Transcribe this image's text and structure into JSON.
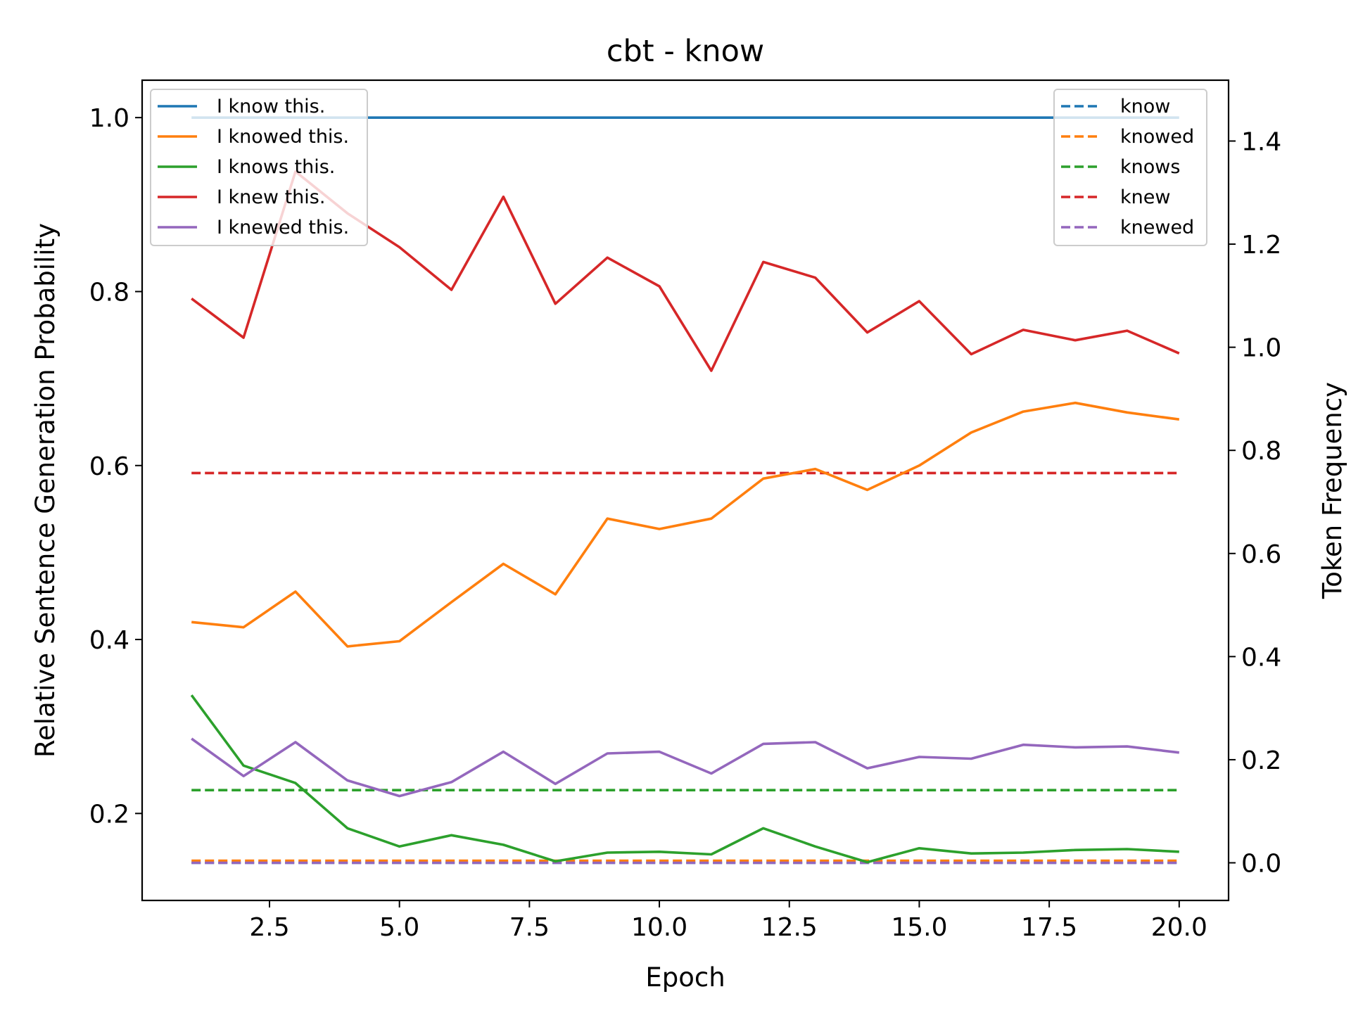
{
  "chart_data": {
    "type": "line",
    "title": "cbt - know",
    "xlabel": "Epoch",
    "ylabel": "Relative Sentence Generation Probability",
    "ylabel_right": "Token Frequency",
    "xlim": [
      0.05,
      20.95
    ],
    "ylim": [
      0.1,
      1.043
    ],
    "ylim_right": [
      -0.073,
      1.518
    ],
    "x_ticks": [
      2.5,
      5.0,
      7.5,
      10.0,
      12.5,
      15.0,
      17.5,
      20.0
    ],
    "x_tick_labels": [
      "2.5",
      "5.0",
      "7.5",
      "10.0",
      "12.5",
      "15.0",
      "17.5",
      "20.0"
    ],
    "y_ticks": [
      0.2,
      0.4,
      0.6,
      0.8,
      1.0
    ],
    "y_tick_labels": [
      "0.2",
      "0.4",
      "0.6",
      "0.8",
      "1.0"
    ],
    "y_right_ticks": [
      0.0,
      0.2,
      0.4,
      0.6,
      0.8,
      1.0,
      1.2,
      1.4
    ],
    "y_right_tick_labels": [
      "0.0",
      "0.2",
      "0.4",
      "0.6",
      "0.8",
      "1.0",
      "1.2",
      "1.4"
    ],
    "x": [
      1,
      2,
      3,
      4,
      5,
      6,
      7,
      8,
      9,
      10,
      11,
      12,
      13,
      14,
      15,
      16,
      17,
      18,
      19,
      20
    ],
    "series": [
      {
        "name": "I know this.",
        "color": "#1f77b4",
        "axis": "left",
        "style": "solid",
        "values": [
          1.0,
          1.0,
          1.0,
          1.0,
          1.0,
          1.0,
          1.0,
          1.0,
          1.0,
          1.0,
          1.0,
          1.0,
          1.0,
          1.0,
          1.0,
          1.0,
          1.0,
          1.0,
          1.0,
          1.0
        ]
      },
      {
        "name": "I knowed this.",
        "color": "#ff7f0e",
        "axis": "left",
        "style": "solid",
        "values": [
          0.42,
          0.414,
          0.455,
          0.392,
          0.398,
          0.443,
          0.487,
          0.452,
          0.539,
          0.527,
          0.539,
          0.585,
          0.596,
          0.572,
          0.6,
          0.638,
          0.662,
          0.672,
          0.661,
          0.653
        ]
      },
      {
        "name": "I knows this.",
        "color": "#2ca02c",
        "axis": "left",
        "style": "solid",
        "values": [
          0.336,
          0.255,
          0.235,
          0.183,
          0.162,
          0.175,
          0.164,
          0.145,
          0.155,
          0.156,
          0.153,
          0.183,
          0.162,
          0.144,
          0.16,
          0.154,
          0.155,
          0.158,
          0.159,
          0.156
        ]
      },
      {
        "name": "I knew this.",
        "color": "#d62728",
        "axis": "left",
        "style": "solid",
        "values": [
          0.792,
          0.747,
          0.938,
          0.89,
          0.851,
          0.802,
          0.909,
          0.786,
          0.839,
          0.806,
          0.709,
          0.834,
          0.816,
          0.753,
          0.789,
          0.728,
          0.756,
          0.744,
          0.755,
          0.729
        ]
      },
      {
        "name": "I knewed this.",
        "color": "#9467bd",
        "axis": "left",
        "style": "solid",
        "values": [
          0.286,
          0.243,
          0.282,
          0.238,
          0.22,
          0.236,
          0.271,
          0.234,
          0.269,
          0.271,
          0.246,
          0.28,
          0.282,
          0.252,
          0.265,
          0.263,
          0.279,
          0.276,
          0.277,
          0.27
        ]
      },
      {
        "name": "know",
        "color": "#1f77b4",
        "axis": "right",
        "style": "dashed",
        "values": [
          0.0,
          0.0,
          0.0,
          0.0,
          0.0,
          0.0,
          0.0,
          0.0,
          0.0,
          0.0,
          0.0,
          0.0,
          0.0,
          0.0,
          0.0,
          0.0,
          0.0,
          0.0,
          0.0,
          0.0
        ]
      },
      {
        "name": "knowed",
        "color": "#ff7f0e",
        "axis": "right",
        "style": "dashed",
        "values": [
          0.004,
          0.004,
          0.004,
          0.004,
          0.004,
          0.004,
          0.004,
          0.004,
          0.004,
          0.004,
          0.004,
          0.004,
          0.004,
          0.004,
          0.004,
          0.004,
          0.004,
          0.004,
          0.004,
          0.004
        ]
      },
      {
        "name": "knows",
        "color": "#2ca02c",
        "axis": "right",
        "style": "dashed",
        "values": [
          0.141,
          0.141,
          0.141,
          0.141,
          0.141,
          0.141,
          0.141,
          0.141,
          0.141,
          0.141,
          0.141,
          0.141,
          0.141,
          0.141,
          0.141,
          0.141,
          0.141,
          0.141,
          0.141,
          0.141
        ]
      },
      {
        "name": "knew",
        "color": "#d62728",
        "axis": "right",
        "style": "dashed",
        "values": [
          0.756,
          0.756,
          0.756,
          0.756,
          0.756,
          0.756,
          0.756,
          0.756,
          0.756,
          0.756,
          0.756,
          0.756,
          0.756,
          0.756,
          0.756,
          0.756,
          0.756,
          0.756,
          0.756,
          0.756
        ]
      },
      {
        "name": "knewed",
        "color": "#9467bd",
        "axis": "right",
        "style": "dashed",
        "values": [
          0.0,
          0.0,
          0.0,
          0.0,
          0.0,
          0.0,
          0.0,
          0.0,
          0.0,
          0.0,
          0.0,
          0.0,
          0.0,
          0.0,
          0.0,
          0.0,
          0.0,
          0.0,
          0.0,
          0.0
        ]
      }
    ],
    "legends": [
      {
        "placement": "top-left",
        "entries": [
          "I know this.",
          "I knowed this.",
          "I knows this.",
          "I knew this.",
          "I knewed this."
        ]
      },
      {
        "placement": "top-right",
        "entries": [
          "know",
          "knowed",
          "knows",
          "knew",
          "knewed"
        ]
      }
    ],
    "grid": false
  }
}
